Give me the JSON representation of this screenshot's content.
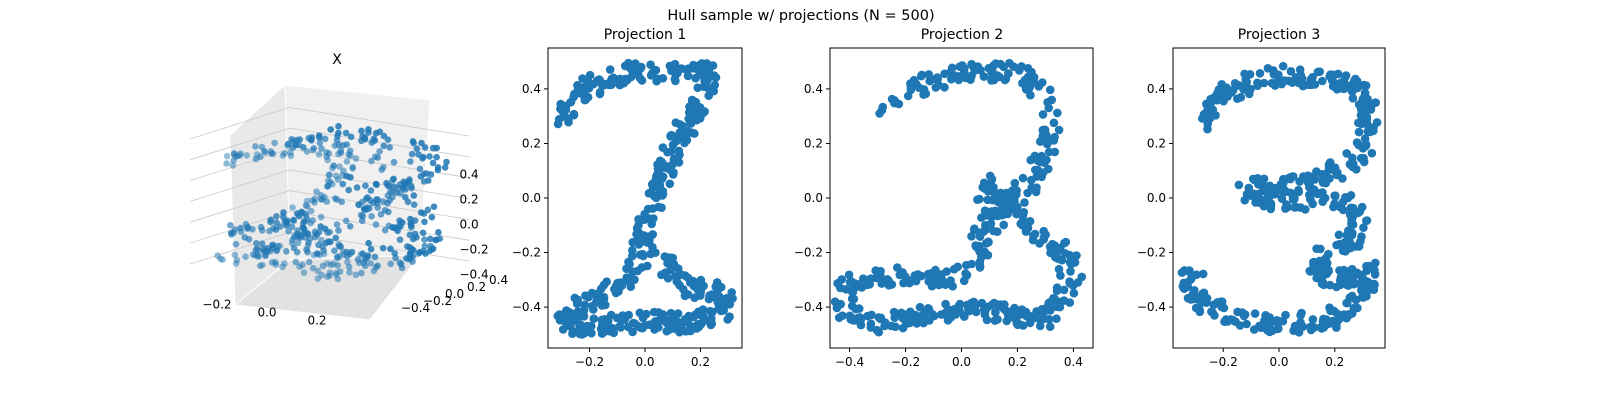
{
  "figure": {
    "suptitle": "Hull sample w/ projections (N = 500)",
    "point_color": "#1f77b4"
  },
  "chart_data": [
    {
      "type": "scatter",
      "title": "X",
      "projection": "3d",
      "n_points": 500,
      "xlim": [
        -0.35,
        0.35
      ],
      "ylim": [
        -0.45,
        0.45
      ],
      "zlim": [
        -0.5,
        0.5
      ],
      "xticks": [
        -0.2,
        0.0,
        0.2
      ],
      "xtick_labels": [
        "−0.2",
        "0.0",
        "0.2"
      ],
      "yticks": [
        -0.4,
        -0.2,
        0.0,
        0.2,
        0.4
      ],
      "ytick_labels": [
        "−0.4",
        "−0.2",
        "0.0",
        "0.2",
        "0.4"
      ],
      "zticks": [
        -0.4,
        -0.2,
        0.0,
        0.2,
        0.4
      ],
      "ztick_labels": [
        "−0.4",
        "−0.2",
        "0.0",
        "0.2",
        "0.4"
      ],
      "grid": true
    },
    {
      "type": "scatter",
      "title": "Projection 1",
      "n_points": 500,
      "xlim": [
        -0.35,
        0.35
      ],
      "ylim": [
        -0.55,
        0.55
      ],
      "xticks": [
        -0.2,
        0.0,
        0.2
      ],
      "xtick_labels": [
        "−0.2",
        "0.0",
        "0.2"
      ],
      "yticks": [
        -0.4,
        -0.2,
        0.0,
        0.2,
        0.4
      ],
      "ytick_labels": [
        "−0.4",
        "−0.2",
        "0.0",
        "0.2",
        "0.4"
      ],
      "shape_points": [
        [
          -0.28,
          0.3
        ],
        [
          -0.26,
          0.36
        ],
        [
          -0.22,
          0.4
        ],
        [
          -0.16,
          0.43
        ],
        [
          -0.1,
          0.45
        ],
        [
          -0.04,
          0.46
        ],
        [
          0.02,
          0.46
        ],
        [
          0.08,
          0.46
        ],
        [
          0.14,
          0.46
        ],
        [
          0.2,
          0.47
        ],
        [
          0.24,
          0.46
        ],
        [
          0.22,
          0.4
        ],
        [
          0.18,
          0.33
        ],
        [
          0.14,
          0.25
        ],
        [
          0.1,
          0.18
        ],
        [
          0.07,
          0.1
        ],
        [
          0.04,
          0.02
        ],
        [
          0.02,
          -0.06
        ],
        [
          0.0,
          -0.14
        ],
        [
          -0.02,
          -0.22
        ],
        [
          -0.04,
          -0.28
        ],
        [
          -0.1,
          -0.33
        ],
        [
          -0.18,
          -0.38
        ],
        [
          -0.26,
          -0.41
        ],
        [
          -0.3,
          -0.44
        ],
        [
          -0.26,
          -0.47
        ],
        [
          -0.16,
          -0.47
        ],
        [
          -0.06,
          -0.46
        ],
        [
          0.04,
          -0.45
        ],
        [
          0.14,
          -0.46
        ],
        [
          0.22,
          -0.44
        ],
        [
          0.28,
          -0.41
        ],
        [
          0.3,
          -0.37
        ],
        [
          0.26,
          -0.35
        ],
        [
          0.18,
          -0.33
        ],
        [
          0.1,
          -0.29
        ],
        [
          0.06,
          -0.22
        ]
      ]
    },
    {
      "type": "scatter",
      "title": "Projection 2",
      "n_points": 500,
      "xlim": [
        -0.47,
        0.47
      ],
      "ylim": [
        -0.55,
        0.55
      ],
      "xticks": [
        -0.4,
        -0.2,
        0.0,
        0.2,
        0.4
      ],
      "xtick_labels": [
        "−0.4",
        "−0.2",
        "0.0",
        "0.2",
        "0.4"
      ],
      "yticks": [
        -0.4,
        -0.2,
        0.0,
        0.2,
        0.4
      ],
      "ytick_labels": [
        "−0.4",
        "−0.2",
        "0.0",
        "0.2",
        "0.4"
      ],
      "shape_points": [
        [
          -0.27,
          0.31
        ],
        [
          -0.24,
          0.36
        ],
        [
          -0.18,
          0.4
        ],
        [
          -0.1,
          0.43
        ],
        [
          -0.02,
          0.45
        ],
        [
          0.06,
          0.46
        ],
        [
          0.14,
          0.46
        ],
        [
          0.22,
          0.45
        ],
        [
          0.28,
          0.41
        ],
        [
          0.31,
          0.34
        ],
        [
          0.32,
          0.25
        ],
        [
          0.3,
          0.16
        ],
        [
          0.26,
          0.08
        ],
        [
          0.2,
          0.02
        ],
        [
          0.14,
          -0.04
        ],
        [
          0.1,
          -0.1
        ],
        [
          0.06,
          -0.18
        ],
        [
          0.03,
          -0.26
        ],
        [
          -0.06,
          -0.29
        ],
        [
          -0.18,
          -0.29
        ],
        [
          -0.3,
          -0.29
        ],
        [
          -0.4,
          -0.31
        ],
        [
          -0.43,
          -0.37
        ],
        [
          -0.4,
          -0.43
        ],
        [
          -0.3,
          -0.46
        ],
        [
          -0.18,
          -0.44
        ],
        [
          -0.06,
          -0.42
        ],
        [
          0.06,
          -0.41
        ],
        [
          0.18,
          -0.43
        ],
        [
          0.28,
          -0.44
        ],
        [
          0.34,
          -0.39
        ],
        [
          0.38,
          -0.32
        ],
        [
          0.41,
          -0.26
        ],
        [
          0.1,
          0.05
        ],
        [
          0.08,
          -0.02
        ]
      ]
    },
    {
      "type": "scatter",
      "title": "Projection 3",
      "n_points": 500,
      "xlim": [
        -0.38,
        0.38
      ],
      "ylim": [
        -0.55,
        0.55
      ],
      "xticks": [
        -0.2,
        0.0,
        0.2
      ],
      "xtick_labels": [
        "−0.2",
        "0.0",
        "0.2"
      ],
      "yticks": [
        -0.4,
        -0.2,
        0.0,
        0.2,
        0.4
      ],
      "ytick_labels": [
        "−0.4",
        "−0.2",
        "0.0",
        "0.2",
        "0.4"
      ],
      "shape_points": [
        [
          -0.27,
          0.28
        ],
        [
          -0.24,
          0.34
        ],
        [
          -0.18,
          0.39
        ],
        [
          -0.1,
          0.43
        ],
        [
          -0.02,
          0.45
        ],
        [
          0.06,
          0.45
        ],
        [
          0.14,
          0.43
        ],
        [
          0.22,
          0.42
        ],
        [
          0.28,
          0.4
        ],
        [
          0.31,
          0.34
        ],
        [
          0.32,
          0.26
        ],
        [
          0.3,
          0.18
        ],
        [
          0.24,
          0.12
        ],
        [
          0.16,
          0.07
        ],
        [
          0.08,
          0.05
        ],
        [
          0.0,
          0.04
        ],
        [
          -0.08,
          0.04
        ],
        [
          -0.12,
          0.02
        ],
        [
          -0.06,
          0.0
        ],
        [
          0.02,
          -0.01
        ],
        [
          0.1,
          -0.01
        ],
        [
          0.18,
          0.0
        ],
        [
          0.26,
          -0.03
        ],
        [
          0.3,
          -0.08
        ],
        [
          0.28,
          -0.14
        ],
        [
          0.22,
          -0.18
        ],
        [
          0.16,
          -0.22
        ],
        [
          0.12,
          -0.28
        ],
        [
          0.2,
          -0.3
        ],
        [
          0.28,
          -0.29
        ],
        [
          0.33,
          -0.27
        ],
        [
          0.33,
          -0.33
        ],
        [
          0.3,
          -0.38
        ],
        [
          0.24,
          -0.42
        ],
        [
          0.16,
          -0.45
        ],
        [
          0.06,
          -0.46
        ],
        [
          -0.04,
          -0.46
        ],
        [
          -0.14,
          -0.44
        ],
        [
          -0.22,
          -0.41
        ],
        [
          -0.28,
          -0.38
        ],
        [
          -0.33,
          -0.34
        ],
        [
          -0.35,
          -0.29
        ],
        [
          -0.3,
          -0.3
        ]
      ]
    }
  ]
}
